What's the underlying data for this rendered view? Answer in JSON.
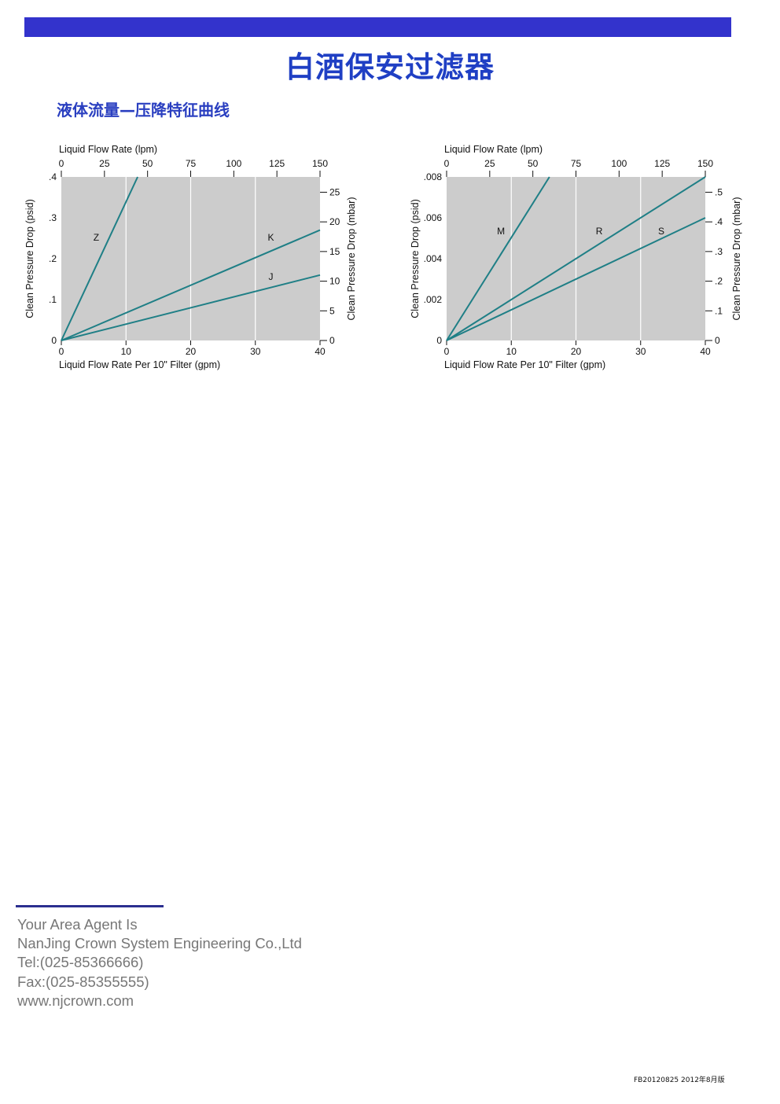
{
  "header": {
    "bar_color": "#3333cc",
    "title": "白酒保安过滤器",
    "section_title": "液体流量—压降特征曲线"
  },
  "chart_data": [
    {
      "type": "line",
      "top_axis": {
        "label": "Liquid Flow Rate (lpm)",
        "ticks": [
          "0",
          "25",
          "50",
          "75",
          "100",
          "125",
          "150"
        ],
        "range": [
          0,
          150
        ]
      },
      "x_axis": {
        "label": "Liquid Flow Rate Per 10\" Filter (gpm)",
        "ticks": [
          "0",
          "10",
          "20",
          "30",
          "40"
        ],
        "range": [
          0,
          40
        ]
      },
      "y_axis": {
        "label": "Clean Pressure Drop (psid)",
        "ticks": [
          "0",
          ".1",
          ".2",
          ".3",
          ".4"
        ],
        "range": [
          0,
          0.4
        ]
      },
      "right_axis": {
        "label": "Clean Pressure Drop (mbar)",
        "ticks": [
          "0",
          "5",
          "10",
          "15",
          "20",
          "25"
        ],
        "range": [
          0,
          27.58
        ]
      },
      "background": "#cccccc",
      "line_color": "#1f7f86",
      "grid": "vertical",
      "series": [
        {
          "name": "Z",
          "x": [
            0,
            11.8
          ],
          "y": [
            0,
            0.4
          ]
        },
        {
          "name": "K",
          "x": [
            0,
            40
          ],
          "y": [
            0,
            0.27
          ]
        },
        {
          "name": "J",
          "x": [
            0,
            40
          ],
          "y": [
            0,
            0.16
          ]
        }
      ]
    },
    {
      "type": "line",
      "top_axis": {
        "label": "Liquid Flow Rate (lpm)",
        "ticks": [
          "0",
          "25",
          "50",
          "75",
          "100",
          "125",
          "150"
        ],
        "range": [
          0,
          150
        ]
      },
      "x_axis": {
        "label": "Liquid Flow Rate Per 10\" Filter (gpm)",
        "ticks": [
          "0",
          "10",
          "20",
          "30",
          "40"
        ],
        "range": [
          0,
          40
        ]
      },
      "y_axis": {
        "label": "Clean Pressure Drop (psid)",
        "ticks": [
          "0",
          ".002",
          ".004",
          ".006",
          ".008"
        ],
        "range": [
          0,
          0.008
        ]
      },
      "right_axis": {
        "label": "Clean Pressure Drop (mbar)",
        "ticks": [
          "0",
          ".1",
          ".2",
          ".3",
          ".4",
          ".5"
        ],
        "range": [
          0,
          0.5516
        ]
      },
      "background": "#cccccc",
      "line_color": "#1f7f86",
      "grid": "vertical",
      "series": [
        {
          "name": "M",
          "x": [
            0,
            15.9
          ],
          "y": [
            0,
            0.008
          ]
        },
        {
          "name": "R",
          "x": [
            0,
            40
          ],
          "y": [
            0,
            0.008
          ]
        },
        {
          "name": "S",
          "x": [
            0,
            40
          ],
          "y": [
            0,
            0.006
          ]
        }
      ]
    }
  ],
  "footer": {
    "rule_color": "#2b2f8f",
    "lines": [
      "Your Area Agent Is",
      "NanJing Crown System Engineering Co.,Ltd",
      "Tel:(025-85366666)",
      "Fax:(025-85355555)",
      "www.njcrown.com"
    ],
    "doc_code": "FB20120825 2012年8月版"
  }
}
